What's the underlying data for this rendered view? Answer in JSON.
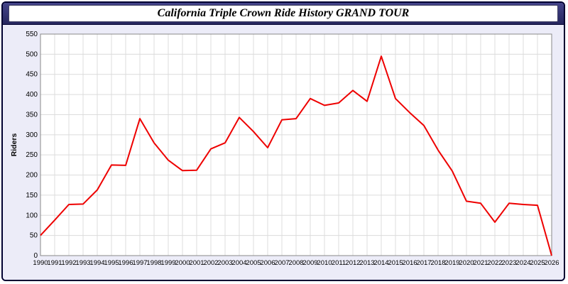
{
  "window": {
    "title": "California Triple Crown Ride History GRAND TOUR"
  },
  "chart_data": {
    "type": "line",
    "title": "California Triple Crown Ride History GRAND TOUR",
    "x": [
      1990,
      1991,
      1992,
      1993,
      1994,
      1995,
      1996,
      1997,
      1998,
      1999,
      2000,
      2001,
      2002,
      2003,
      2004,
      2005,
      2006,
      2007,
      2008,
      2009,
      2010,
      2011,
      2012,
      2013,
      2014,
      2015,
      2016,
      2017,
      2018,
      2019,
      2020,
      2021,
      2022,
      2023,
      2024,
      2025,
      2026
    ],
    "values": [
      50,
      88,
      127,
      128,
      163,
      225,
      224,
      340,
      280,
      237,
      211,
      212,
      265,
      280,
      343,
      308,
      268,
      337,
      340,
      390,
      373,
      379,
      410,
      383,
      495,
      390,
      355,
      323,
      262,
      210,
      135,
      130,
      83,
      130,
      127,
      125,
      0
    ],
    "xlabel": "",
    "ylabel": "Riders",
    "ylim": [
      0,
      550
    ],
    "ytick_step": 50,
    "grid": true,
    "legend": "none",
    "line_color": "#ee0000",
    "grid_color": "#dcdcdc",
    "plot_bg": "#ffffff",
    "plot_border": "#888888"
  }
}
